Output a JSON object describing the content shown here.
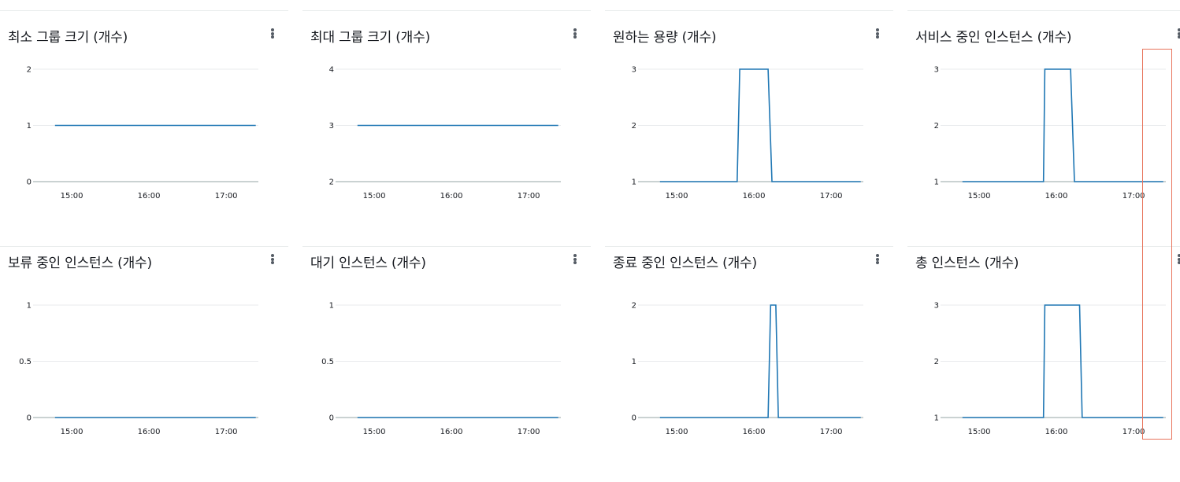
{
  "colors": {
    "series": "#1f77b4",
    "gridline": "#e9ebed",
    "baseline": "#aab7b8",
    "highlight": "#e8735b",
    "title": "#16191f"
  },
  "icons": {
    "menu": "vertical-ellipsis-icon"
  },
  "x_ticks": [
    "15:00",
    "16:00",
    "17:00"
  ],
  "chart_data": [
    {
      "type": "line",
      "title": "최소 그룹 크기 (개수)",
      "y_ticks": [
        "2",
        "1",
        "0"
      ],
      "ylim": [
        0,
        2
      ],
      "x_ticks": [
        "15:00",
        "16:00",
        "17:00"
      ],
      "xlim": [
        "14:30",
        "17:25"
      ],
      "series": [
        {
          "x": [
            "14:47",
            "17:23"
          ],
          "y": [
            1,
            1
          ]
        }
      ]
    },
    {
      "type": "line",
      "title": "최대 그룹 크기 (개수)",
      "y_ticks": [
        "4",
        "3",
        "2"
      ],
      "ylim": [
        2,
        4
      ],
      "x_ticks": [
        "15:00",
        "16:00",
        "17:00"
      ],
      "xlim": [
        "14:30",
        "17:25"
      ],
      "series": [
        {
          "x": [
            "14:47",
            "17:23"
          ],
          "y": [
            3,
            3
          ]
        }
      ]
    },
    {
      "type": "line",
      "title": "원하는 용량 (개수)",
      "y_ticks": [
        "3",
        "2",
        "1"
      ],
      "ylim": [
        1,
        3
      ],
      "x_ticks": [
        "15:00",
        "16:00",
        "17:00"
      ],
      "xlim": [
        "14:30",
        "17:25"
      ],
      "series": [
        {
          "x": [
            "14:47",
            "15:47",
            "15:49",
            "16:11",
            "16:14",
            "17:23"
          ],
          "y": [
            1,
            1,
            3,
            3,
            1,
            1
          ]
        }
      ]
    },
    {
      "type": "line",
      "title": "서비스 중인 인스턴스 (개수)",
      "y_ticks": [
        "3",
        "2",
        "1"
      ],
      "ylim": [
        1,
        3
      ],
      "x_ticks": [
        "15:00",
        "16:00",
        "17:00"
      ],
      "xlim": [
        "14:30",
        "17:25"
      ],
      "series": [
        {
          "x": [
            "14:47",
            "15:50",
            "15:51",
            "16:11",
            "16:14",
            "17:23"
          ],
          "y": [
            1,
            1,
            3,
            3,
            1,
            1
          ]
        }
      ]
    },
    {
      "type": "line",
      "title": "보류 중인 인스턴스 (개수)",
      "y_ticks": [
        "1",
        "0.5",
        "0"
      ],
      "ylim": [
        0,
        1
      ],
      "x_ticks": [
        "15:00",
        "16:00",
        "17:00"
      ],
      "xlim": [
        "14:30",
        "17:25"
      ],
      "series": [
        {
          "x": [
            "14:47",
            "17:23"
          ],
          "y": [
            0,
            0
          ]
        }
      ]
    },
    {
      "type": "line",
      "title": "대기 인스턴스 (개수)",
      "y_ticks": [
        "1",
        "0.5",
        "0"
      ],
      "ylim": [
        0,
        1
      ],
      "x_ticks": [
        "15:00",
        "16:00",
        "17:00"
      ],
      "xlim": [
        "14:30",
        "17:25"
      ],
      "series": [
        {
          "x": [
            "14:47",
            "17:23"
          ],
          "y": [
            0,
            0
          ]
        }
      ]
    },
    {
      "type": "line",
      "title": "종료 중인 인스턴스 (개수)",
      "y_ticks": [
        "2",
        "1",
        "0"
      ],
      "ylim": [
        0,
        2
      ],
      "x_ticks": [
        "15:00",
        "16:00",
        "17:00"
      ],
      "xlim": [
        "14:30",
        "17:25"
      ],
      "series": [
        {
          "x": [
            "14:47",
            "16:11",
            "16:13",
            "16:17",
            "16:19",
            "17:23"
          ],
          "y": [
            0,
            0,
            2,
            2,
            0,
            0
          ]
        }
      ]
    },
    {
      "type": "line",
      "title": "총 인스턴스 (개수)",
      "y_ticks": [
        "3",
        "2",
        "1"
      ],
      "ylim": [
        1,
        3
      ],
      "x_ticks": [
        "15:00",
        "16:00",
        "17:00"
      ],
      "xlim": [
        "14:30",
        "17:25"
      ],
      "series": [
        {
          "x": [
            "14:47",
            "15:50",
            "15:51",
            "16:18",
            "16:20",
            "17:23"
          ],
          "y": [
            1,
            1,
            3,
            3,
            1,
            1
          ]
        }
      ]
    }
  ]
}
